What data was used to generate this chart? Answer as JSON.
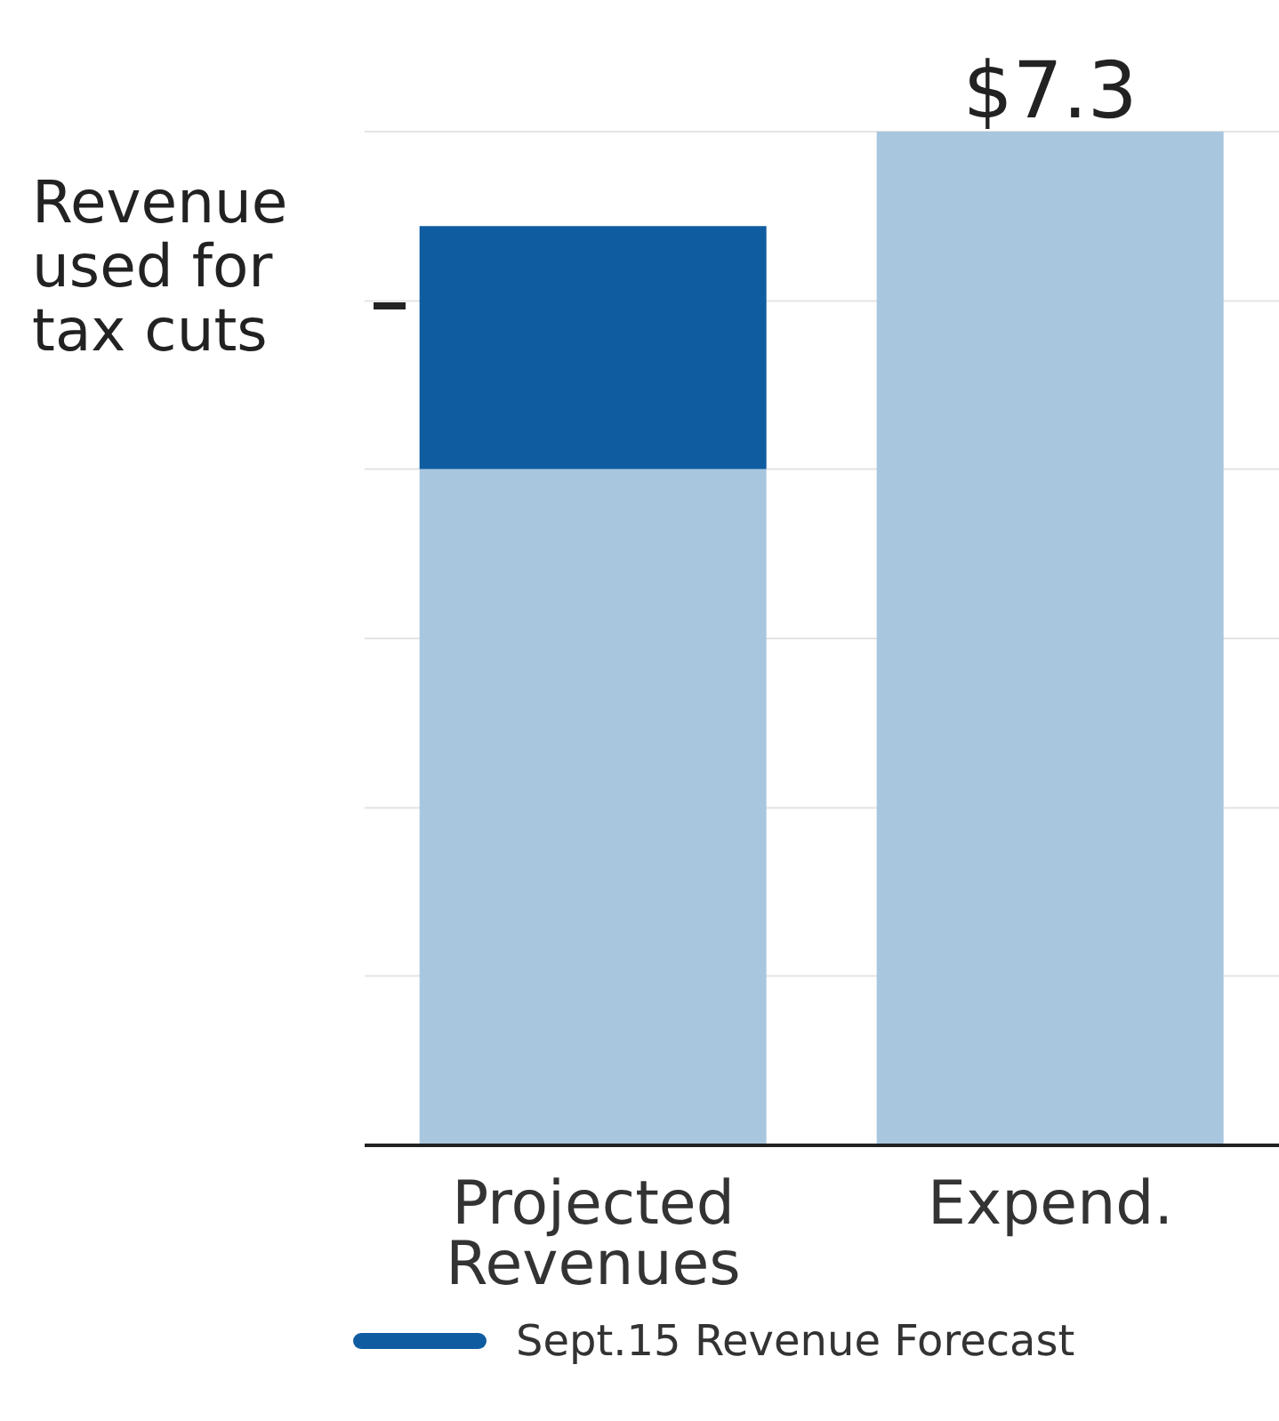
{
  "chart_data": {
    "type": "bar",
    "stacked": true,
    "categories": [
      "Projected Revenues",
      "Expend."
    ],
    "series": [
      {
        "color": "#a9c6df",
        "values": [
          4.87,
          7.3
        ],
        "value_labels": [
          null,
          "$7.3"
        ]
      },
      {
        "color": "#0f5ca1",
        "values": [
          1.75,
          null
        ]
      },
      {
        "type": "line",
        "name": "Sept.15 Revenue Forecast",
        "color": "#0f5ca1",
        "values": [
          null,
          null
        ]
      }
    ],
    "ylim": [
      0,
      7.3
    ],
    "yticks": [
      {
        "value": 0,
        "label": null
      },
      {
        "value": 1.22,
        "label": null
      },
      {
        "value": 2.43,
        "label": null
      },
      {
        "value": 3.65,
        "label": null
      },
      {
        "value": 4.87,
        "label": null
      },
      {
        "value": 6.08,
        "label": null
      },
      {
        "value": 7.3,
        "label": null
      }
    ],
    "tick_labels": "x",
    "grid": "y",
    "legend": "bottom",
    "annotations": [
      "Revenue used for tax cuts"
    ]
  }
}
